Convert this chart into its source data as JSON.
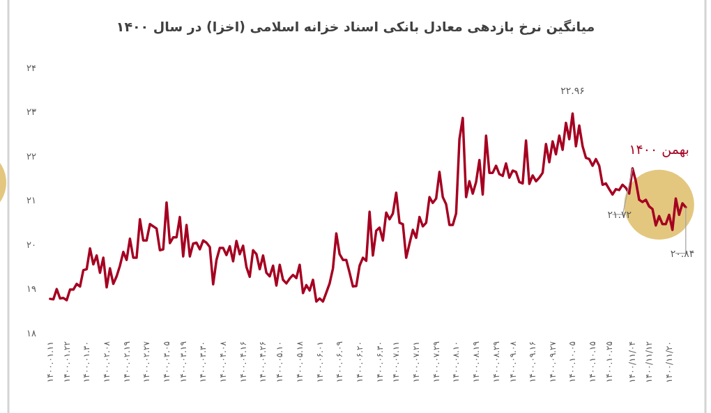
{
  "chart_data": {
    "type": "line",
    "title": "میانگین نرخ بازدهی معادل بانکی اسناد خزانه اسلامی (اخزا) در سال ۱۴۰۰",
    "categories": [
      "۱۴۰۰.۰۱.۱۱",
      null,
      null,
      null,
      null,
      "۱۴۰۰.۰۱.۲۲",
      null,
      null,
      null,
      null,
      null,
      "۱۴۰۰.۰۱.۳۰",
      null,
      null,
      null,
      null,
      null,
      "۱۴۰۰.۰۲.۰۸",
      null,
      null,
      null,
      null,
      null,
      "۱۴۰۰.۰۲.۱۹",
      null,
      null,
      null,
      null,
      null,
      "۱۴۰۰.۰۲.۲۷",
      null,
      null,
      null,
      null,
      null,
      "۱۴۰۰.۰۳.۰۵",
      null,
      null,
      null,
      null,
      "۱۴۰۰.۰۳.۱۹",
      null,
      null,
      null,
      null,
      null,
      "۱۴۰۰.۰۳.۳۰",
      null,
      null,
      null,
      null,
      null,
      "۱۴۰۰.۰۴.۰۸",
      null,
      null,
      null,
      null,
      null,
      "۱۴۰۰.۰۴.۱۶",
      null,
      null,
      null,
      null,
      null,
      "۱۴۰۰.۰۴.۲۶",
      null,
      null,
      null,
      null,
      "۱۴۰۰.۰۵.۱۰",
      null,
      null,
      null,
      null,
      null,
      "۱۴۰۰.۰۵.۱۸",
      null,
      null,
      null,
      null,
      null,
      "۱۴۰۰.۰۶.۰۱",
      null,
      null,
      null,
      null,
      null,
      "۱۴۰۰.۰۶.۰۹",
      null,
      null,
      null,
      null,
      null,
      "۱۴۰۰.۰۶.۲۰",
      null,
      null,
      null,
      null,
      null,
      "۱۴۰۰.۰۶.۳۰",
      null,
      null,
      null,
      null,
      "۱۴۰۰.۰۷.۱۱",
      null,
      null,
      null,
      null,
      null,
      "۱۴۰۰.۰۷.۲۱",
      null,
      null,
      null,
      null,
      null,
      "۱۴۰۰.۰۷.۲۹",
      null,
      null,
      null,
      null,
      null,
      "۱۴۰۰.۰۸.۱۰",
      null,
      null,
      null,
      null,
      null,
      "۱۴۰۰.۰۸.۱۹",
      null,
      null,
      null,
      null,
      null,
      "۱۴۰۰.۰۸.۲۹",
      null,
      null,
      null,
      null,
      "۱۴۰۰.۰۹.۰۸",
      null,
      null,
      null,
      null,
      null,
      "۱۴۰۰.۰۹.۱۶",
      null,
      null,
      null,
      null,
      null,
      "۱۴۰۰.۰۹.۲۷",
      null,
      null,
      null,
      null,
      null,
      "۱۴۰۰.۱۰.۰۵",
      null,
      null,
      null,
      null,
      null,
      "۱۴۰۰.۱۰.۱۵",
      null,
      null,
      null,
      null,
      "۱۴۰۰.۱۰.۲۵",
      null,
      null,
      null,
      null,
      null,
      null,
      "۱۴۰۰/۱۱/۰۴",
      null,
      null,
      null,
      null,
      "۱۴۰۰/۱۱/۱۲",
      null,
      null,
      null,
      null,
      null,
      "۱۴۰۰/۱۱/۲۰",
      null,
      null,
      null,
      null,
      null
    ],
    "series": [
      {
        "color": "#a50021",
        "values": [
          18.77,
          18.76,
          18.99,
          18.78,
          18.79,
          18.74,
          18.98,
          18.98,
          19.11,
          19.05,
          19.42,
          19.44,
          19.91,
          19.55,
          19.75,
          19.36,
          19.7,
          19.03,
          19.46,
          19.11,
          19.28,
          19.52,
          19.83,
          19.65,
          20.13,
          19.7,
          19.7,
          20.57,
          20.09,
          20.09,
          20.46,
          20.41,
          20.36,
          19.87,
          19.89,
          20.95,
          20.03,
          20.16,
          20.16,
          20.62,
          19.73,
          20.44,
          19.73,
          20.02,
          20.04,
          19.89,
          20.09,
          20.04,
          19.94,
          19.1,
          19.65,
          19.92,
          19.92,
          19.76,
          19.96,
          19.62,
          20.08,
          19.78,
          19.97,
          19.49,
          19.27,
          19.87,
          19.78,
          19.44,
          19.75,
          19.36,
          19.28,
          19.52,
          19.07,
          19.54,
          19.2,
          19.12,
          19.23,
          19.31,
          19.24,
          19.54,
          18.9,
          19.08,
          18.96,
          19.2,
          18.71,
          18.78,
          18.71,
          18.91,
          19.12,
          19.46,
          20.25,
          19.78,
          19.65,
          19.65,
          19.36,
          19.05,
          19.06,
          19.52,
          19.7,
          19.63,
          20.74,
          19.75,
          20.31,
          20.38,
          20.09,
          20.72,
          20.57,
          20.7,
          21.17,
          20.49,
          20.46,
          19.7,
          20.02,
          20.33,
          20.15,
          20.62,
          20.41,
          20.49,
          21.07,
          20.94,
          21.04,
          21.64,
          21.07,
          20.91,
          20.44,
          20.44,
          20.7,
          22.38,
          22.86,
          21.07,
          21.43,
          21.15,
          21.41,
          21.91,
          21.13,
          22.46,
          21.62,
          21.62,
          21.78,
          21.59,
          21.55,
          21.83,
          21.51,
          21.67,
          21.64,
          21.41,
          21.38,
          22.35,
          21.37,
          21.56,
          21.43,
          21.51,
          21.62,
          22.27,
          21.86,
          22.33,
          22.04,
          22.46,
          22.14,
          22.75,
          22.38,
          22.96,
          22.22,
          22.69,
          22.22,
          21.96,
          21.93,
          21.78,
          21.93,
          21.78,
          21.35,
          21.38,
          21.25,
          21.13,
          21.25,
          21.23,
          21.35,
          21.28,
          21.15,
          21.72,
          21.43,
          21.01,
          20.96,
          21.01,
          20.86,
          20.8,
          20.43,
          20.64,
          20.46,
          20.46,
          20.67,
          20.33,
          21.04,
          20.67,
          20.93,
          20.84
        ]
      }
    ],
    "ylim": [
      18,
      24
    ],
    "yticks": [
      {
        "value": 18,
        "label": "۱۸"
      },
      {
        "value": 19,
        "label": "۱۹"
      },
      {
        "value": 20,
        "label": "۲۰"
      },
      {
        "value": 21,
        "label": "۲۱"
      },
      {
        "value": 22,
        "label": "۲۲"
      },
      {
        "value": 23,
        "label": "۲۳"
      },
      {
        "value": 24,
        "label": "۲۴"
      }
    ],
    "marker": "none",
    "line_style": "solid",
    "annotations": [
      {
        "text": "۲۲.۹۶",
        "x": "۱۴۰۰.۱۰.۰۵",
        "y": 22.96
      },
      {
        "text": "۲۱.۷۲",
        "x": "۱۴۰۰/۱۱/۰۴",
        "y": 21.72
      },
      {
        "text": "۲۰.۸۴",
        "y": 20.84
      },
      "بهمن ۱۴۰۰"
    ]
  }
}
